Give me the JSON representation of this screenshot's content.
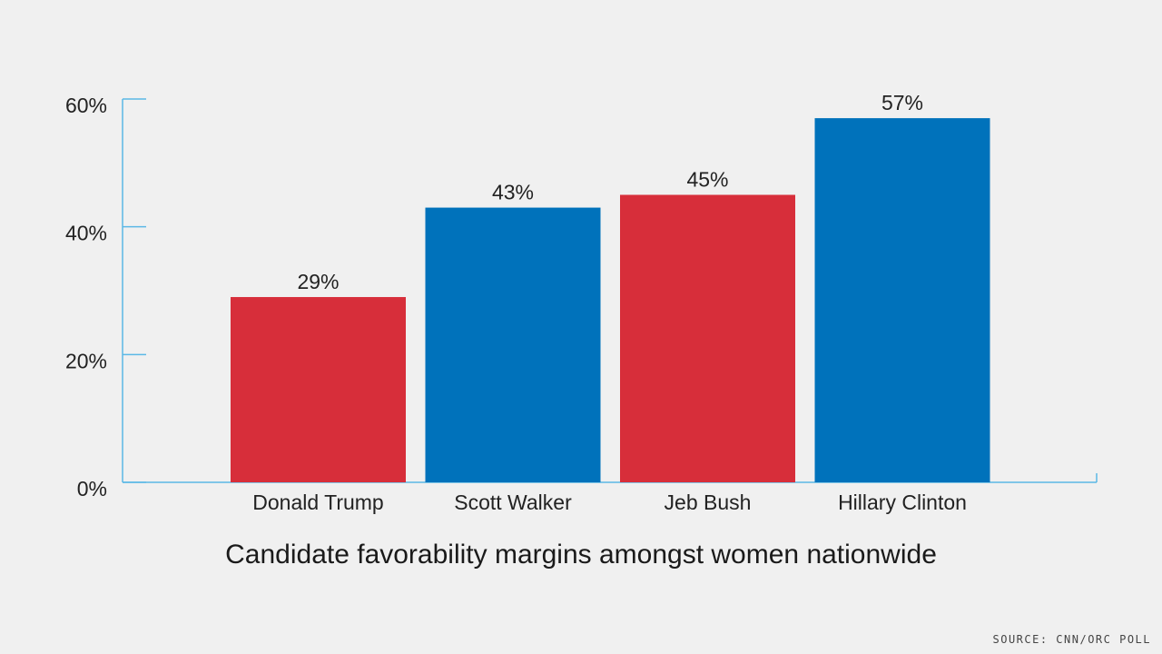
{
  "chart_data": {
    "type": "bar",
    "title": "Candidate favorability margins amongst women nationwide",
    "categories": [
      "Donald Trump",
      "Scott Walker",
      "Jeb Bush",
      "Hillary Clinton"
    ],
    "values": [
      29,
      43,
      45,
      57
    ],
    "value_labels": [
      "29%",
      "43%",
      "45%",
      "57%"
    ],
    "bar_colors": [
      "#d72e3a",
      "#0072bb",
      "#d72e3a",
      "#0072bb"
    ],
    "ylim": [
      0,
      60
    ],
    "yticks": [
      0,
      20,
      40,
      60
    ],
    "ytick_labels": [
      "0%",
      "20%",
      "40%",
      "60%"
    ],
    "axis_color": "#5bb8e6",
    "grid": false,
    "legend": "none"
  },
  "source": "SOURCE: CNN/ORC POLL"
}
